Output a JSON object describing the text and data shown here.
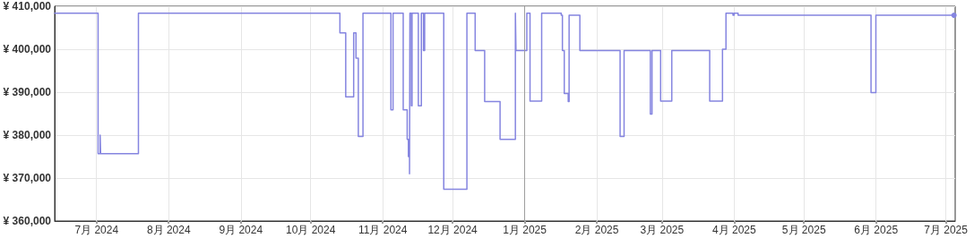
{
  "chart_data": {
    "type": "step",
    "grid": true,
    "xlim": [
      "2024-06-13",
      "2025-07-05"
    ],
    "xticks": [
      {
        "value": "2024-07-01",
        "label": "7月 2024"
      },
      {
        "value": "2024-08-01",
        "label": "8月 2024"
      },
      {
        "value": "2024-09-01",
        "label": "9月 2024"
      },
      {
        "value": "2024-10-01",
        "label": "10月 2024"
      },
      {
        "value": "2024-11-01",
        "label": "11月 2024"
      },
      {
        "value": "2024-12-01",
        "label": "12月 2024"
      },
      {
        "value": "2025-01-01",
        "label": "1月 2025"
      },
      {
        "value": "2025-02-01",
        "label": "2月 2025"
      },
      {
        "value": "2025-03-01",
        "label": "3月 2025"
      },
      {
        "value": "2025-04-01",
        "label": "4月 2025"
      },
      {
        "value": "2025-05-01",
        "label": "5月 2025"
      },
      {
        "value": "2025-06-01",
        "label": "6月 2025"
      },
      {
        "value": "2025-07-01",
        "label": "7月 2025"
      }
    ],
    "ylim": [
      360000,
      410000
    ],
    "yticks": [
      {
        "value": 360000,
        "label": "¥ 360,000"
      },
      {
        "value": 370000,
        "label": "¥ 370,000"
      },
      {
        "value": 380000,
        "label": "¥ 380,000"
      },
      {
        "value": 390000,
        "label": "¥ 390,000"
      },
      {
        "value": 400000,
        "label": "¥ 400,000"
      },
      {
        "value": 410000,
        "label": "¥ 410,000"
      }
    ],
    "ref_lines": [
      {
        "axis": "x",
        "value": "2025-01-01",
        "color": "#9e9e9e"
      }
    ],
    "series": [
      {
        "color": "#8585e0",
        "marker": "none",
        "x": [
          "2024-06-13",
          "2024-07-01T16:00",
          "2024-07-02T13:00",
          "2024-07-02T18:00",
          "2024-07-19",
          "2024-10-13T14:00",
          "2024-10-16T02:00",
          "2024-10-19T12:00",
          "2024-10-20T12:00",
          "2024-10-21T12:00",
          "2024-10-23T12:00",
          "2024-11-04T12:00",
          "2024-11-05T10:00",
          "2024-11-09T19:00",
          "2024-11-11T12:00",
          "2024-11-12",
          "2024-11-12T12:00",
          "2024-11-12T16:00",
          "2024-11-13T07:00",
          "2024-11-13T14:00",
          "2024-11-16T07:00",
          "2024-11-17T14:00",
          "2024-11-18T12:00",
          "2024-11-19",
          "2024-11-27T05:00",
          "2024-12-07T04:00",
          "2024-12-10T17:00",
          "2024-12-14T19:00",
          "2024-12-21T10:00",
          "2024-12-28",
          "2024-12-28T06:00",
          "2025-01-01T22:00",
          "2025-01-03T07:00",
          "2025-01-08T07:00",
          "2025-01-16T17:00",
          "2025-01-17T05:00",
          "2025-01-18",
          "2025-01-19T17:00",
          "2025-01-20T02:00",
          "2025-01-24T17:00",
          "2025-02-11",
          "2025-02-12T17:00",
          "2025-02-24",
          "2025-02-24T17:00",
          "2025-02-28T10:00",
          "2025-03-05T05:00",
          "2025-03-21T12:00",
          "2025-03-27",
          "2025-03-28T12:00",
          "2025-03-31T12:00",
          "2025-04-01",
          "2025-04-02T17:00",
          "2025-05-29T20:00",
          "2025-05-31T22:00",
          "2025-07-04T12:00"
        ],
        "values": [
          408400,
          375700,
          380000,
          375700,
          408400,
          403800,
          388900,
          403800,
          397900,
          379700,
          408400,
          385900,
          408400,
          385900,
          379000,
          375000,
          371000,
          408400,
          386800,
          408400,
          386800,
          408400,
          399700,
          408400,
          367400,
          408400,
          399700,
          387800,
          379000,
          408400,
          399700,
          408400,
          387900,
          408400,
          407900,
          399700,
          389700,
          387800,
          407900,
          399700,
          379700,
          399700,
          384900,
          399700,
          387900,
          399700,
          387900,
          400000,
          408400,
          407900,
          408400,
          407900,
          389900,
          407900,
          407900
        ]
      },
      {
        "type": "scatter",
        "color": "#8585e0",
        "marker": "circle",
        "x": [
          "2025-07-04T12:00"
        ],
        "values": [
          407900
        ]
      }
    ]
  }
}
